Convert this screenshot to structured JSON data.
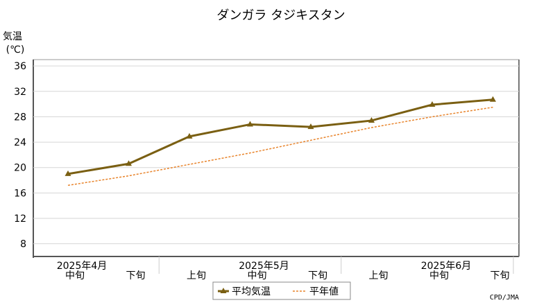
{
  "chart_data": {
    "type": "line",
    "title": "ダンガラ タジキスタン",
    "ylabel_line1": "気温",
    "ylabel_line2": "(℃)",
    "ylim": [
      6,
      37
    ],
    "yticks": [
      8,
      12,
      16,
      20,
      24,
      28,
      32,
      36
    ],
    "grid": true,
    "categories": [
      "中旬",
      "下旬",
      "上旬",
      "中旬",
      "下旬",
      "上旬",
      "中旬",
      "下旬"
    ],
    "month_labels": [
      {
        "label": "2025年4月",
        "category_index": 0
      },
      {
        "label": "2025年5月",
        "category_index": 3
      },
      {
        "label": "2025年6月",
        "category_index": 6
      }
    ],
    "series": [
      {
        "name": "平均気温",
        "style": "solid-marker",
        "color": "#7a5f12",
        "values": [
          19.0,
          20.6,
          24.9,
          26.8,
          26.4,
          27.4,
          29.9,
          30.7
        ]
      },
      {
        "name": "平年値",
        "style": "dashed",
        "color": "#e8832a",
        "values": [
          17.2,
          18.7,
          20.5,
          22.3,
          24.3,
          26.3,
          28.0,
          29.5
        ]
      }
    ],
    "legend_position": "bottom-center",
    "credit": "CPD/JMA"
  }
}
